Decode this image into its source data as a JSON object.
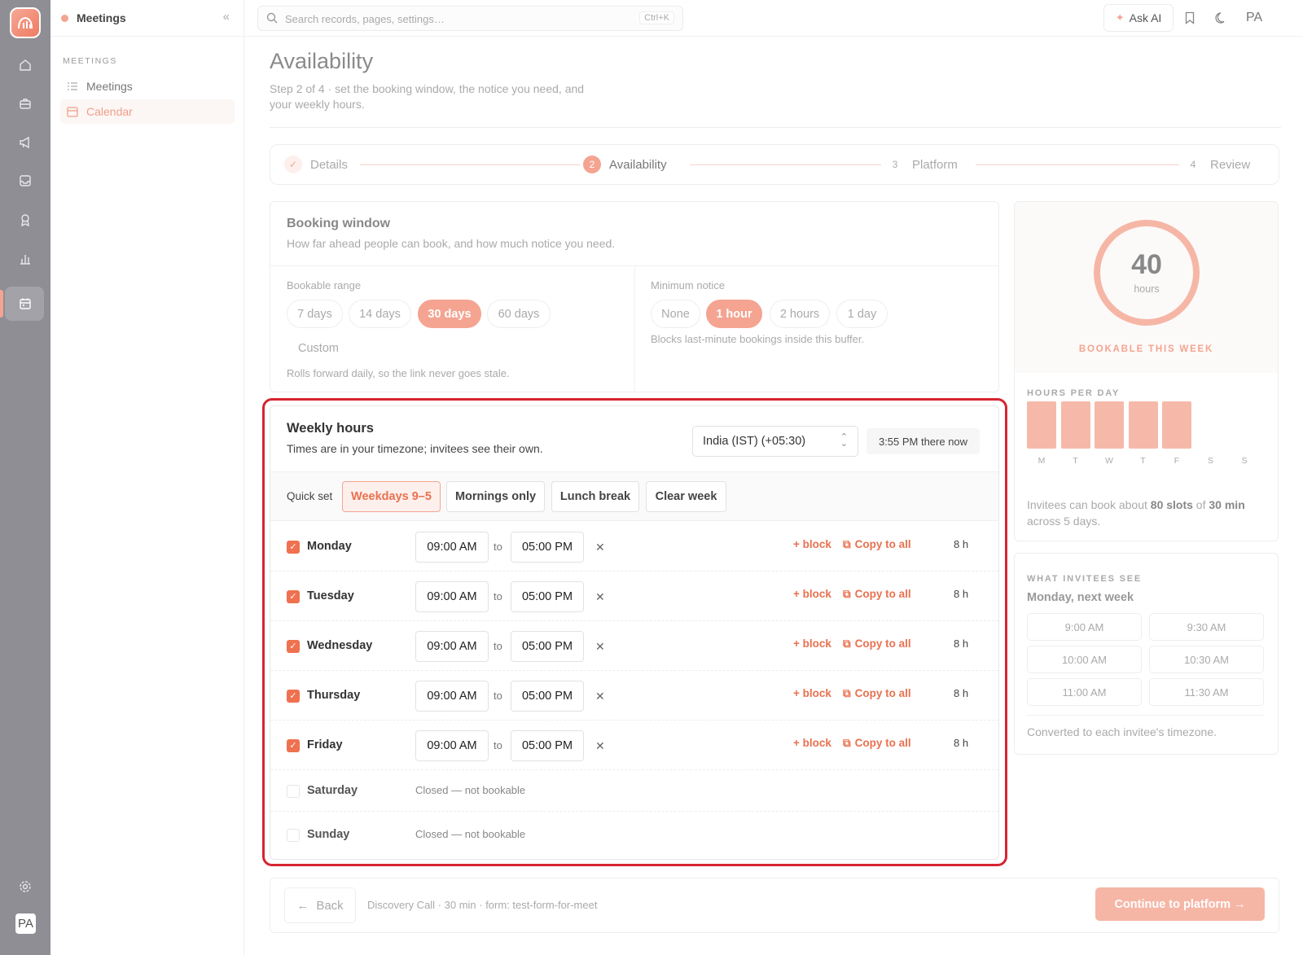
{
  "sidebar": {
    "title": "Meetings",
    "section": "MEETINGS",
    "items": [
      {
        "label": "Meetings",
        "icon": "list-icon"
      },
      {
        "label": "Calendar",
        "icon": "calendar-icon",
        "active": true
      }
    ]
  },
  "topbar": {
    "search_placeholder": "Search records, pages, settings…",
    "search_shortcut": "Ctrl+K",
    "ask_ai": "Ask AI",
    "user_initials": "PA"
  },
  "rail": {
    "icons": [
      "home-icon",
      "briefcase-icon",
      "megaphone-icon",
      "inbox-icon",
      "award-icon",
      "chart-icon",
      "calendar-icon",
      "settings-icon"
    ],
    "avatar": "PA"
  },
  "page": {
    "title": "Availability",
    "subtitle": "Step 2 of 4 · set the booking window, the notice you need, and your weekly hours."
  },
  "stepper": [
    {
      "num": "✓",
      "label": "Details",
      "state": "done"
    },
    {
      "num": "2",
      "label": "Availability",
      "state": "active"
    },
    {
      "num": "3",
      "label": "Platform",
      "state": "todo"
    },
    {
      "num": "4",
      "label": "Review",
      "state": "todo"
    }
  ],
  "booking_window": {
    "title": "Booking window",
    "desc": "How far ahead people can book, and how much notice you need.",
    "range_label": "Bookable range",
    "range_options": [
      "7 days",
      "14 days",
      "30 days",
      "60 days"
    ],
    "range_selected": "30 days",
    "range_custom": "Custom",
    "range_hint": "Rolls forward daily, so the link never goes stale.",
    "notice_label": "Minimum notice",
    "notice_options": [
      "None",
      "1 hour",
      "2 hours",
      "1 day"
    ],
    "notice_selected": "1 hour",
    "notice_hint": "Blocks last-minute bookings inside this buffer."
  },
  "summary": {
    "hours": "40",
    "unit": "hours",
    "caption": "BOOKABLE THIS WEEK",
    "per_day_title": "HOURS PER DAY",
    "per_day": [
      {
        "day": "M",
        "hours": 8
      },
      {
        "day": "T",
        "hours": 8
      },
      {
        "day": "W",
        "hours": 8
      },
      {
        "day": "T",
        "hours": 8
      },
      {
        "day": "F",
        "hours": 8
      },
      {
        "day": "S",
        "hours": 0
      },
      {
        "day": "S",
        "hours": 0
      }
    ],
    "text_a": "Invitees can book about ",
    "slots": "80 slots",
    "text_b": " of ",
    "duration": "30 min",
    "text_c": " across 5 days."
  },
  "invitees": {
    "title": "WHAT INVITEES SEE",
    "day": "Monday, next week",
    "slots": [
      "9:00 AM",
      "9:30 AM",
      "10:00 AM",
      "10:30 AM",
      "11:00 AM",
      "11:30 AM"
    ],
    "footer": "Converted to each invitee's timezone."
  },
  "weekly": {
    "title": "Weekly hours",
    "desc": "Times are in your timezone; invitees see their own.",
    "timezone": "India (IST) (+05:30)",
    "now": "3:55 PM there now",
    "quick_label": "Quick set",
    "quick_options": [
      "Weekdays 9–5",
      "Mornings only",
      "Lunch break",
      "Clear week"
    ],
    "quick_selected": "Weekdays 9–5",
    "to_label": "to",
    "block_label": "+ block",
    "copy_label": "Copy to all",
    "closed_label": "Closed — not bookable",
    "days": [
      {
        "name": "Monday",
        "enabled": true,
        "start": "09:00 AM",
        "end": "05:00 PM",
        "hours": "8 h"
      },
      {
        "name": "Tuesday",
        "enabled": true,
        "start": "09:00 AM",
        "end": "05:00 PM",
        "hours": "8 h"
      },
      {
        "name": "Wednesday",
        "enabled": true,
        "start": "09:00 AM",
        "end": "05:00 PM",
        "hours": "8 h"
      },
      {
        "name": "Thursday",
        "enabled": true,
        "start": "09:00 AM",
        "end": "05:00 PM",
        "hours": "8 h"
      },
      {
        "name": "Friday",
        "enabled": true,
        "start": "09:00 AM",
        "end": "05:00 PM",
        "hours": "8 h"
      },
      {
        "name": "Saturday",
        "enabled": false
      },
      {
        "name": "Sunday",
        "enabled": false
      }
    ]
  },
  "footer": {
    "back": "Back",
    "info": "Discovery Call · 30 min · form: test-form-for-meet",
    "continue": "Continue to platform →"
  },
  "colors": {
    "accent": "#f4a491",
    "accent_strong": "#e9714f",
    "highlight_outline": "#d62430"
  }
}
